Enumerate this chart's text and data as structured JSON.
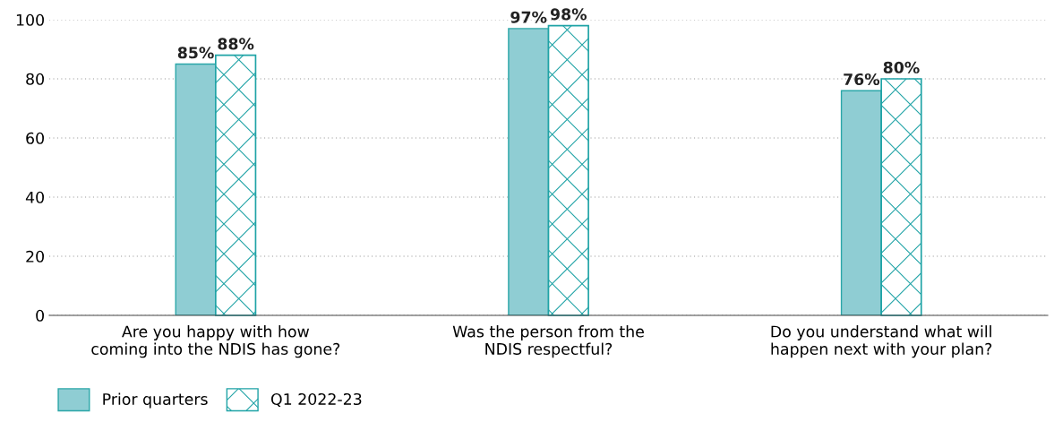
{
  "chart_data": {
    "type": "bar",
    "categories": [
      "Are you happy with how\ncoming into the NDIS has gone?",
      "Was the person from the\nNDIS respectful?",
      "Do you understand what will\nhappen next with your plan?"
    ],
    "series": [
      {
        "name": "Prior quarters",
        "color": "#8fcdd3",
        "values": [
          85,
          97,
          76
        ],
        "value_labels": [
          "85%",
          "97%",
          "76%"
        ]
      },
      {
        "name": "Q1 2022-23",
        "color": "#1fa3a6",
        "values": [
          88,
          98,
          80
        ],
        "value_labels": [
          "88%",
          "98%",
          "80%"
        ]
      }
    ],
    "ylim": [
      0,
      100
    ],
    "yticks": [
      0,
      20,
      40,
      60,
      80,
      100
    ],
    "grid": "y",
    "legend": "bottom left"
  }
}
